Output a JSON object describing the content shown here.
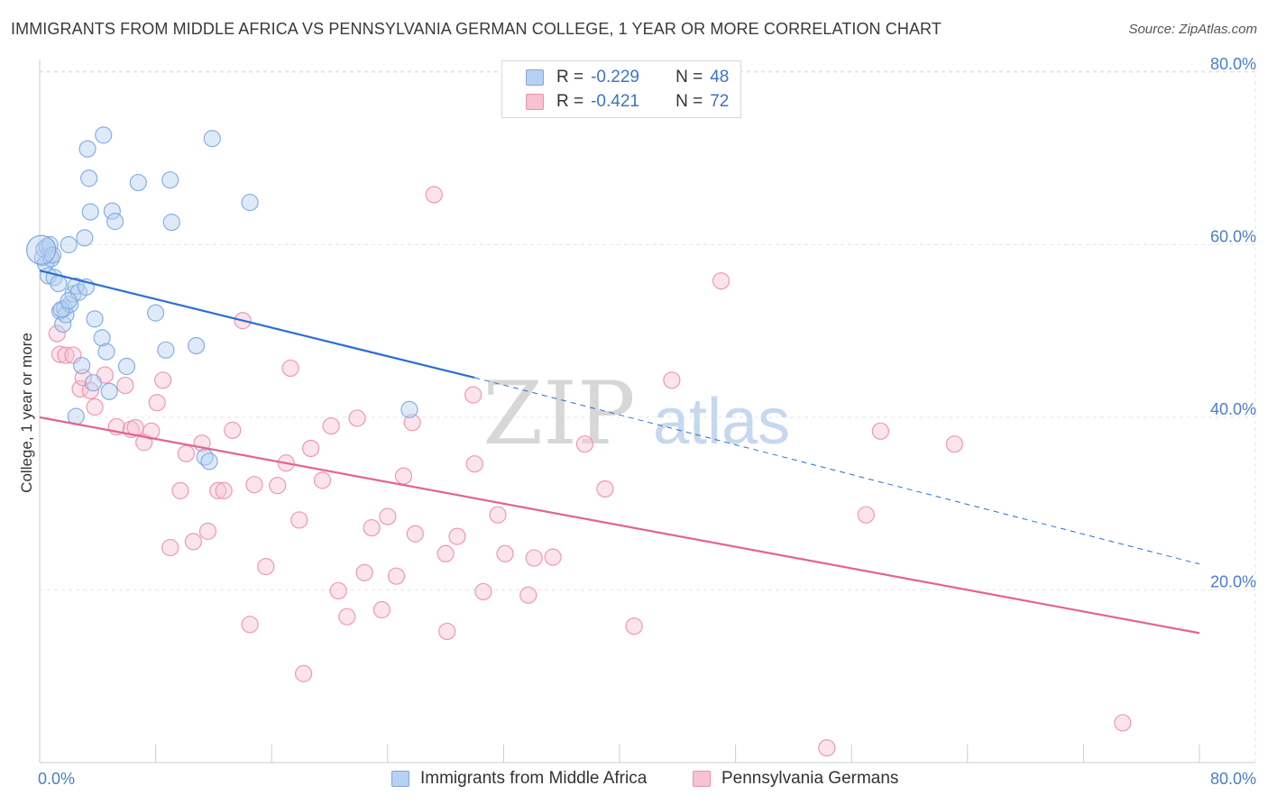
{
  "title": "IMMIGRANTS FROM MIDDLE AFRICA VS PENNSYLVANIA GERMAN COLLEGE, 1 YEAR OR MORE CORRELATION CHART",
  "source": "Source: ZipAtlas.com",
  "watermark": {
    "zip": "ZIP",
    "atlas": "atlas"
  },
  "colors": {
    "blue": "#7ba7e0",
    "blue_line": "#2b6fd1",
    "blue_fill": "#b8d0f2",
    "pink": "#ec8fab",
    "pink_line": "#e2648f",
    "pink_fill": "#f6c3d3",
    "tick_text": "#4a7ec9",
    "grid": "#e6e6e6"
  },
  "stats": [
    {
      "r_label": "R =",
      "r": "-0.229",
      "n_label": "N =",
      "n": "48"
    },
    {
      "r_label": "R =",
      "r": "-0.421",
      "n_label": "N =",
      "n": "72"
    }
  ],
  "legend": [
    "Immigrants from Middle Africa",
    "Pennsylvania Germans"
  ],
  "chart_data": {
    "type": "scatter",
    "title": "IMMIGRANTS FROM MIDDLE AFRICA VS PENNSYLVANIA GERMAN COLLEGE, 1 YEAR OR MORE CORRELATION CHART",
    "xlabel": "",
    "ylabel": "College, 1 year or more",
    "xlim": [
      0,
      80
    ],
    "ylim": [
      0,
      82
    ],
    "x_tick_labels": [
      "0.0%",
      "80.0%"
    ],
    "y_ticks": [
      {
        "value": 20,
        "label": "20.0%"
      },
      {
        "value": 40,
        "label": "40.0%"
      },
      {
        "value": 60,
        "label": "60.0%"
      },
      {
        "value": 80,
        "label": "80.0%"
      }
    ],
    "grid": true,
    "series": [
      {
        "name": "Immigrants from Middle Africa",
        "color": "#7ba7e0",
        "trend": {
          "x": [
            0,
            30,
            80
          ],
          "y": [
            57.0,
            44.6,
            23.0
          ],
          "solid_until": 30
        },
        "points": [
          [
            0.2,
            58.5
          ],
          [
            0.3,
            59.5
          ],
          [
            0.4,
            57.8
          ],
          [
            0.5,
            59.8
          ],
          [
            0.6,
            56.4
          ],
          [
            0.7,
            60.0
          ],
          [
            0.8,
            58.4
          ],
          [
            1.0,
            56.2
          ],
          [
            1.3,
            55.5
          ],
          [
            1.4,
            52.3
          ],
          [
            1.6,
            50.8
          ],
          [
            1.7,
            52.6
          ],
          [
            1.8,
            51.9
          ],
          [
            2.0,
            60.0
          ],
          [
            2.1,
            53.1
          ],
          [
            2.3,
            54.3
          ],
          [
            2.5,
            55.2
          ],
          [
            2.7,
            54.5
          ],
          [
            2.9,
            46.0
          ],
          [
            3.1,
            60.8
          ],
          [
            3.3,
            71.1
          ],
          [
            3.4,
            67.7
          ],
          [
            3.5,
            63.8
          ],
          [
            3.2,
            55.1
          ],
          [
            3.8,
            51.4
          ],
          [
            4.3,
            49.2
          ],
          [
            4.6,
            47.6
          ],
          [
            4.8,
            43.0
          ],
          [
            5.0,
            63.9
          ],
          [
            5.2,
            62.7
          ],
          [
            4.4,
            72.7
          ],
          [
            6.0,
            45.9
          ],
          [
            6.8,
            67.2
          ],
          [
            8.0,
            52.1
          ],
          [
            8.7,
            47.8
          ],
          [
            9.0,
            67.5
          ],
          [
            9.1,
            62.6
          ],
          [
            10.8,
            48.3
          ],
          [
            11.4,
            35.4
          ],
          [
            11.7,
            34.9
          ],
          [
            11.9,
            72.3
          ],
          [
            14.5,
            64.9
          ],
          [
            25.5,
            40.9
          ],
          [
            2.5,
            40.1
          ],
          [
            1.5,
            52.5
          ],
          [
            0.9,
            58.8
          ],
          [
            3.7,
            44.0
          ],
          [
            2.0,
            53.5
          ]
        ]
      },
      {
        "name": "Pennsylvania Germans",
        "color": "#ec8fab",
        "trend": {
          "x": [
            0,
            80
          ],
          "y": [
            40.0,
            15.0
          ]
        },
        "points": [
          [
            0.7,
            58.8
          ],
          [
            1.2,
            49.7
          ],
          [
            1.4,
            47.3
          ],
          [
            1.8,
            47.2
          ],
          [
            2.3,
            47.2
          ],
          [
            2.8,
            43.3
          ],
          [
            3.0,
            44.6
          ],
          [
            3.5,
            43.1
          ],
          [
            3.8,
            41.2
          ],
          [
            4.5,
            44.9
          ],
          [
            5.3,
            38.9
          ],
          [
            5.9,
            43.7
          ],
          [
            6.3,
            38.6
          ],
          [
            6.6,
            38.8
          ],
          [
            7.2,
            37.1
          ],
          [
            7.7,
            38.4
          ],
          [
            8.1,
            41.7
          ],
          [
            8.5,
            44.3
          ],
          [
            9.0,
            24.9
          ],
          [
            9.7,
            31.5
          ],
          [
            10.1,
            35.8
          ],
          [
            10.6,
            25.6
          ],
          [
            11.2,
            37.0
          ],
          [
            11.6,
            26.8
          ],
          [
            12.3,
            31.5
          ],
          [
            12.7,
            31.5
          ],
          [
            13.3,
            38.5
          ],
          [
            14.0,
            51.2
          ],
          [
            14.5,
            16.0
          ],
          [
            14.8,
            32.2
          ],
          [
            15.6,
            22.7
          ],
          [
            16.4,
            32.1
          ],
          [
            17.0,
            34.7
          ],
          [
            17.3,
            45.7
          ],
          [
            17.9,
            28.1
          ],
          [
            18.2,
            10.3
          ],
          [
            18.7,
            36.4
          ],
          [
            19.5,
            32.7
          ],
          [
            20.1,
            39.0
          ],
          [
            20.6,
            19.9
          ],
          [
            21.2,
            16.9
          ],
          [
            21.9,
            39.9
          ],
          [
            22.4,
            22.0
          ],
          [
            22.9,
            27.2
          ],
          [
            23.6,
            17.7
          ],
          [
            24.0,
            28.5
          ],
          [
            24.6,
            21.6
          ],
          [
            25.1,
            33.2
          ],
          [
            25.7,
            39.4
          ],
          [
            25.9,
            26.5
          ],
          [
            27.2,
            65.8
          ],
          [
            28.0,
            24.2
          ],
          [
            28.1,
            15.2
          ],
          [
            28.8,
            26.2
          ],
          [
            29.9,
            42.6
          ],
          [
            30.0,
            34.6
          ],
          [
            30.6,
            19.8
          ],
          [
            31.6,
            28.7
          ],
          [
            32.1,
            24.2
          ],
          [
            33.7,
            19.4
          ],
          [
            34.1,
            23.7
          ],
          [
            35.4,
            23.8
          ],
          [
            37.6,
            36.9
          ],
          [
            39.0,
            31.7
          ],
          [
            41.0,
            15.8
          ],
          [
            43.6,
            44.3
          ],
          [
            47.0,
            55.8
          ],
          [
            54.3,
            1.7
          ],
          [
            57.0,
            28.7
          ],
          [
            58.0,
            38.4
          ],
          [
            63.1,
            36.9
          ],
          [
            74.7,
            4.6
          ]
        ]
      }
    ]
  }
}
